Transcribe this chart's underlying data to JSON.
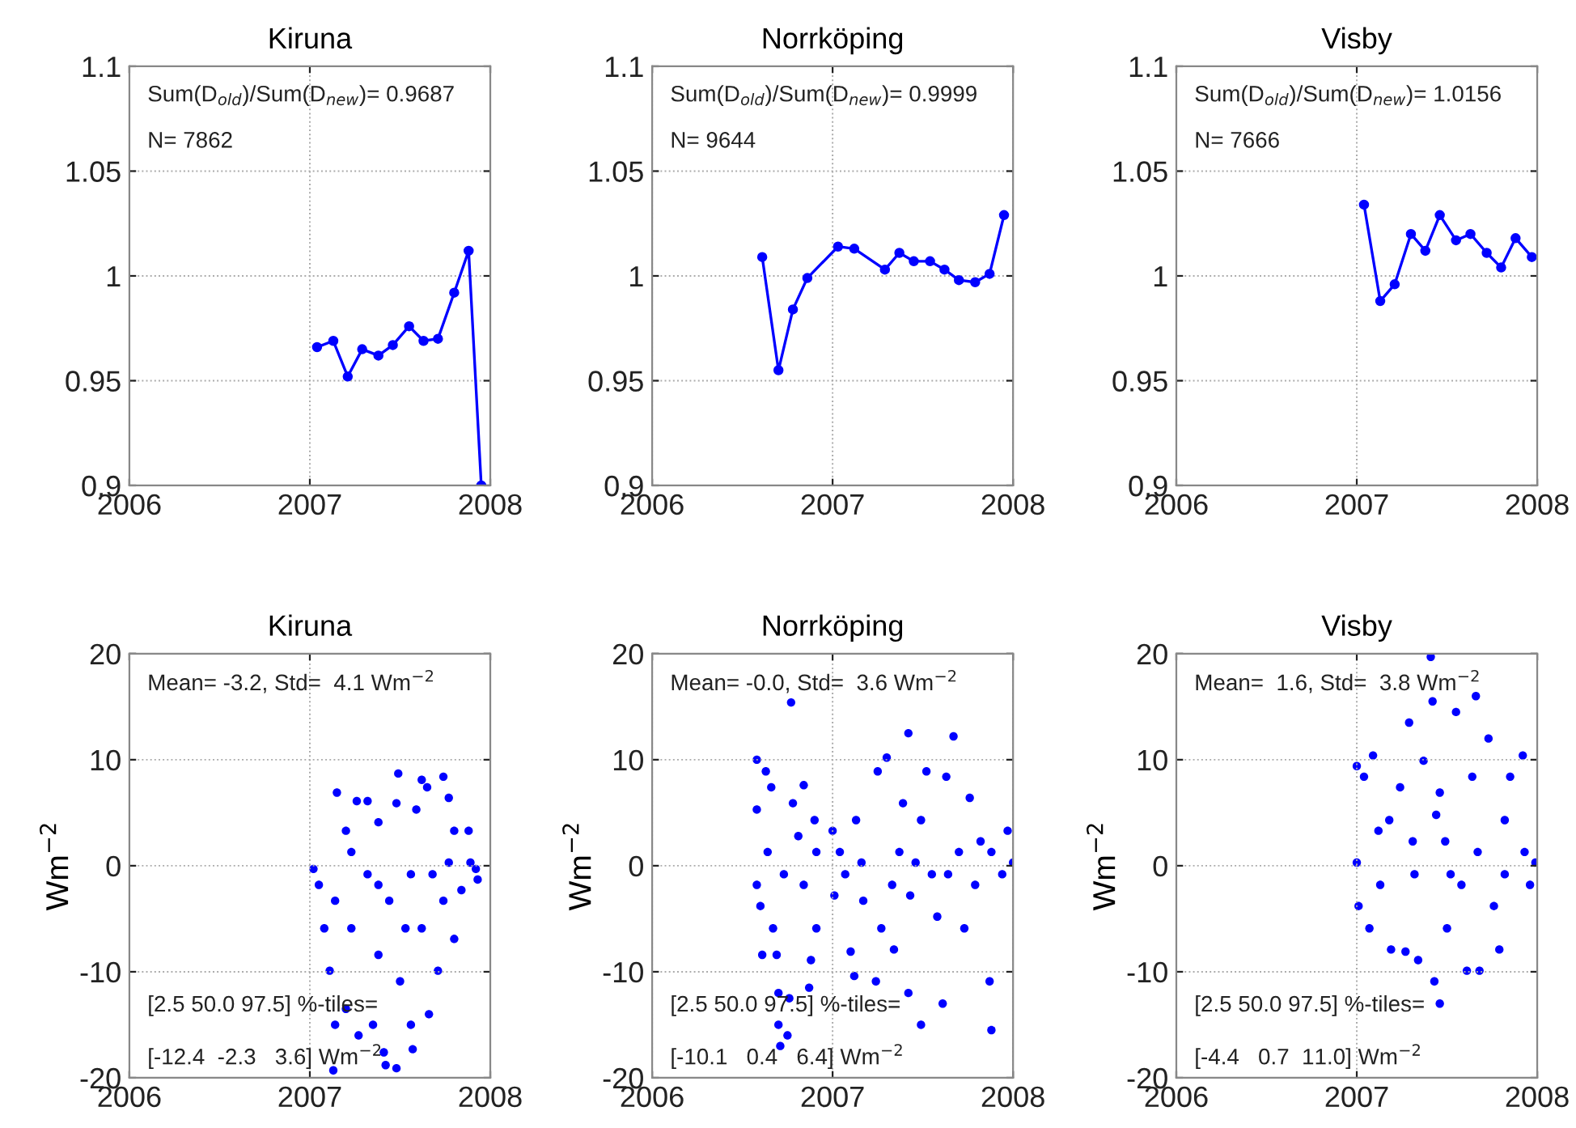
{
  "chart_data": [
    {
      "type": "line",
      "title": "Kiruna",
      "marker": "circle",
      "grid": true,
      "xlim": [
        2006,
        2008
      ],
      "xticks": [
        2006,
        2007,
        2008
      ],
      "ylim": [
        0.9,
        1.1
      ],
      "yticks": [
        0.9,
        0.95,
        1,
        1.05,
        1.1
      ],
      "annotations": [
        "Sum(D$_{old}$)/Sum(D$_{new}$)= 0.9687",
        "N= 7862"
      ],
      "series": [
        {
          "color": "#0000ff",
          "x": [
            2007.04,
            2007.13,
            2007.21,
            2007.29,
            2007.38,
            2007.46,
            2007.55,
            2007.63,
            2007.71,
            2007.8,
            2007.88,
            2007.95
          ],
          "values": [
            0.966,
            0.969,
            0.952,
            0.965,
            0.962,
            0.967,
            0.976,
            0.969,
            0.97,
            0.992,
            1.012,
            0.9
          ]
        }
      ]
    },
    {
      "type": "line",
      "title": "Norrköping",
      "marker": "circle",
      "grid": true,
      "xlim": [
        2006,
        2008
      ],
      "xticks": [
        2006,
        2007,
        2008
      ],
      "ylim": [
        0.9,
        1.1
      ],
      "yticks": [
        0.9,
        0.95,
        1,
        1.05,
        1.1
      ],
      "annotations": [
        "Sum(D$_{old}$)/Sum(D$_{new}$)= 0.9999",
        "N= 9644"
      ],
      "series": [
        {
          "color": "#0000ff",
          "x": [
            2006.61,
            2006.7,
            2006.78,
            2006.86,
            2007.03,
            2007.12,
            2007.29,
            2007.37,
            2007.45,
            2007.54,
            2007.62,
            2007.7,
            2007.79,
            2007.87,
            2007.95
          ],
          "values": [
            1.009,
            0.955,
            0.984,
            0.999,
            1.014,
            1.013,
            1.003,
            1.011,
            1.007,
            1.007,
            1.003,
            0.998,
            0.997,
            1.001,
            1.029
          ]
        }
      ]
    },
    {
      "type": "line",
      "title": "Visby",
      "marker": "circle",
      "grid": true,
      "xlim": [
        2006,
        2008
      ],
      "xticks": [
        2006,
        2007,
        2008
      ],
      "ylim": [
        0.9,
        1.1
      ],
      "yticks": [
        0.9,
        0.95,
        1,
        1.05,
        1.1
      ],
      "annotations": [
        "Sum(D$_{old}$)/Sum(D$_{new}$)= 1.0156",
        "N= 7666"
      ],
      "series": [
        {
          "color": "#0000ff",
          "x": [
            2007.04,
            2007.13,
            2007.21,
            2007.3,
            2007.38,
            2007.46,
            2007.55,
            2007.63,
            2007.72,
            2007.8,
            2007.88,
            2007.97
          ],
          "values": [
            1.034,
            0.988,
            0.996,
            1.02,
            1.012,
            1.029,
            1.017,
            1.02,
            1.011,
            1.004,
            1.018,
            1.009
          ]
        }
      ]
    },
    {
      "type": "scatter",
      "title": "Kiruna",
      "ylabel": "Wm$^{−2}$",
      "marker": "circle",
      "grid": true,
      "xlim": [
        2006,
        2008
      ],
      "xticks": [
        2006,
        2007,
        2008
      ],
      "ylim": [
        -20,
        20
      ],
      "yticks": [
        -20,
        -10,
        0,
        10,
        20
      ],
      "annotations": [
        "Mean= -3.2, Std=  4.1 Wm$^{−2}$",
        "[2.5 50.0 97.5] %-tiles=",
        "[-12.4  -2.3   3.6] Wm$^{−2}$"
      ],
      "series": [
        {
          "color": "#0000ff",
          "x": [
            2007.02,
            2007.05,
            2007.08,
            2007.11,
            2007.14,
            2007.13,
            2007.15,
            2007.2,
            2007.2,
            2007.26,
            2007.27,
            2007.32,
            2007.35,
            2007.38,
            2007.41,
            2007.42,
            2007.48,
            2007.48,
            2007.49,
            2007.53,
            2007.56,
            2007.57,
            2007.59,
            2007.62,
            2007.65,
            2007.66,
            2007.68,
            2007.71,
            2007.74,
            2007.77,
            2007.8,
            2007.8,
            2007.84,
            2007.88,
            2007.89,
            2007.92,
            2007.93,
            2007.14,
            2007.23,
            2007.32,
            2007.38,
            2007.44,
            2007.5,
            2007.56,
            2007.62,
            2007.74,
            2007.77,
            2007.23,
            2007.38
          ],
          "values": [
            -0.3,
            -1.8,
            -5.9,
            -9.9,
            -15.0,
            -19.3,
            6.9,
            3.3,
            -13.5,
            6.1,
            -16.0,
            6.1,
            -15.0,
            4.1,
            -17.6,
            -18.8,
            -19.1,
            5.9,
            8.7,
            -5.9,
            -15.0,
            -17.3,
            5.3,
            8.1,
            7.4,
            -14.0,
            -0.8,
            -9.9,
            8.4,
            6.4,
            3.3,
            -6.9,
            -2.3,
            3.3,
            0.3,
            -0.3,
            -1.3,
            -3.3,
            -5.9,
            -0.8,
            -8.4,
            -3.3,
            -10.9,
            -0.8,
            -5.9,
            -3.3,
            0.3,
            1.3,
            -1.8
          ]
        }
      ]
    },
    {
      "type": "scatter",
      "title": "Norrköping",
      "ylabel": "Wm$^{−2}$",
      "marker": "circle",
      "grid": true,
      "xlim": [
        2006,
        2008
      ],
      "xticks": [
        2006,
        2007,
        2008
      ],
      "ylim": [
        -20,
        20
      ],
      "yticks": [
        -20,
        -10,
        0,
        10,
        20
      ],
      "annotations": [
        "Mean= -0.0, Std=  3.6 Wm$^{−2}$",
        "[2.5 50.0 97.5] %-tiles=",
        "[-10.1   0.4   6.4] Wm$^{−2}$"
      ],
      "series": [
        {
          "color": "#0000ff",
          "x": [
            2006.58,
            2006.58,
            2006.58,
            2006.6,
            2006.61,
            2006.63,
            2006.66,
            2006.67,
            2006.69,
            2006.7,
            2006.7,
            2006.71,
            2006.75,
            2006.76,
            2006.77,
            2006.78,
            2006.81,
            2006.84,
            2006.84,
            2006.87,
            2006.88,
            2006.9,
            2006.91,
            2006.91,
            2006.73,
            2006.64,
            2007.0,
            2007.01,
            2007.04,
            2007.07,
            2007.1,
            2007.12,
            2007.13,
            2007.16,
            2007.17,
            2007.24,
            2007.25,
            2007.27,
            2007.3,
            2007.33,
            2007.34,
            2007.37,
            2007.39,
            2007.42,
            2007.42,
            2007.43,
            2007.49,
            2007.49,
            2007.52,
            2007.55,
            2007.58,
            2007.61,
            2007.63,
            2007.67,
            2007.7,
            2007.73,
            2007.76,
            2007.79,
            2007.82,
            2007.87,
            2007.88,
            2007.88,
            2007.94,
            2007.97,
            2008.0,
            2007.46,
            2007.64
          ],
          "values": [
            10.0,
            5.3,
            -1.8,
            -3.8,
            -8.4,
            8.9,
            7.4,
            -5.9,
            -8.4,
            -12.0,
            -15.0,
            -17.0,
            -16.0,
            -12.5,
            15.4,
            5.9,
            2.8,
            7.6,
            -1.8,
            -11.5,
            -8.9,
            4.3,
            1.3,
            -5.9,
            -0.8,
            1.3,
            3.3,
            -2.8,
            1.3,
            -0.8,
            -8.1,
            -10.4,
            4.3,
            0.3,
            -3.3,
            -10.9,
            8.9,
            -5.9,
            10.2,
            -1.8,
            -7.9,
            1.3,
            5.9,
            12.5,
            -12.0,
            -2.8,
            -15.0,
            4.3,
            8.9,
            -0.8,
            -4.8,
            -13.0,
            8.4,
            12.2,
            1.3,
            -5.9,
            6.4,
            -1.8,
            2.3,
            -10.9,
            -15.5,
            1.3,
            -0.8,
            3.3,
            0.3,
            0.3,
            -0.8
          ]
        }
      ]
    },
    {
      "type": "scatter",
      "title": "Visby",
      "ylabel": "Wm$^{−2}$",
      "marker": "circle",
      "grid": true,
      "xlim": [
        2006,
        2008
      ],
      "xticks": [
        2006,
        2007,
        2008
      ],
      "ylim": [
        -20,
        20
      ],
      "yticks": [
        -20,
        -10,
        0,
        10,
        20
      ],
      "annotations": [
        "Mean=  1.6, Std=  3.8 Wm$^{−2}$",
        "[2.5 50.0 97.5] %-tiles=",
        "[-4.4   0.7  11.0] Wm$^{−2}$"
      ],
      "series": [
        {
          "color": "#0000ff",
          "x": [
            2007.0,
            2007.0,
            2007.01,
            2007.04,
            2007.07,
            2007.09,
            2007.12,
            2007.13,
            2007.18,
            2007.19,
            2007.24,
            2007.27,
            2007.29,
            2007.32,
            2007.34,
            2007.37,
            2007.41,
            2007.42,
            2007.43,
            2007.44,
            2007.46,
            2007.49,
            2007.5,
            2007.55,
            2007.58,
            2007.61,
            2007.64,
            2007.66,
            2007.68,
            2007.73,
            2007.76,
            2007.79,
            2007.82,
            2007.85,
            2007.92,
            2007.93,
            2007.96,
            2007.99,
            2007.31,
            2007.52,
            2007.67,
            2007.82,
            2007.46
          ],
          "values": [
            0.3,
            9.4,
            -3.8,
            8.4,
            -5.9,
            10.4,
            3.3,
            -1.8,
            4.3,
            -7.9,
            7.4,
            -8.1,
            13.5,
            -0.8,
            -8.9,
            9.9,
            19.7,
            15.5,
            -10.9,
            4.8,
            -13.0,
            2.3,
            -5.9,
            14.5,
            -1.8,
            -9.9,
            8.4,
            16.0,
            -9.9,
            12.0,
            -3.8,
            -7.9,
            4.3,
            8.4,
            10.4,
            1.3,
            -1.8,
            0.3,
            2.3,
            -0.8,
            1.3,
            -0.8,
            6.9
          ]
        }
      ]
    }
  ]
}
